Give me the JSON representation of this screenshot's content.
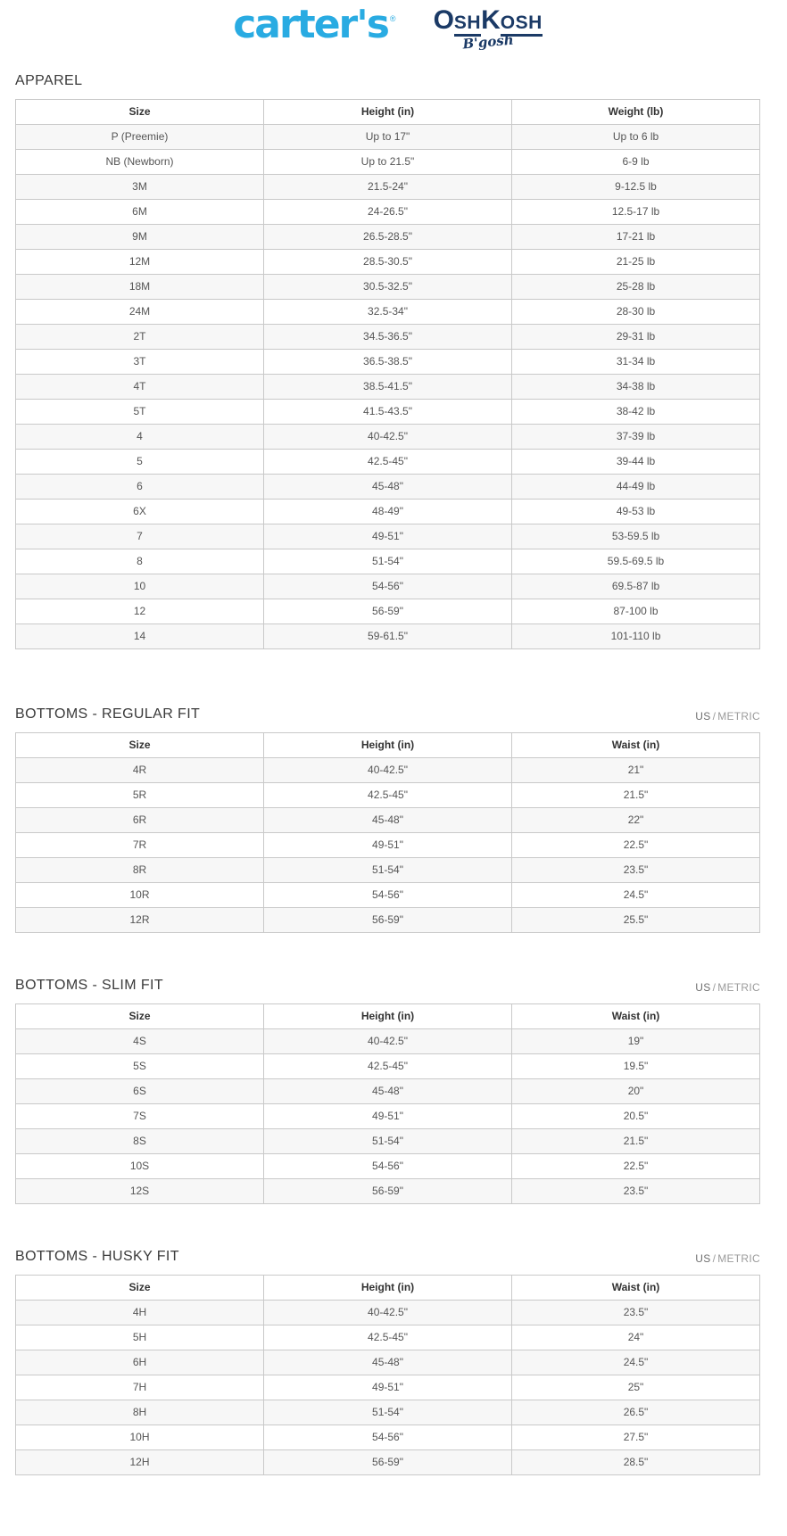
{
  "colors": {
    "carters_blue": "#29abe2",
    "oshkosh_navy": "#1b3a66",
    "stripe_gray": "#f7f7f7",
    "border_gray": "#c9c9c9"
  },
  "header": {
    "carters": {
      "text": "carter's",
      "reg": "®"
    },
    "oshkosh": {
      "o": "O",
      "sh": "SH",
      "k": "K",
      "osh": "OSH",
      "script": "B'gosh"
    }
  },
  "unit_toggle": {
    "us": "US",
    "sep": "/",
    "metric": "METRIC"
  },
  "sections": [
    {
      "title": "APPAREL",
      "columns": [
        "Size",
        "Height (in)",
        "Weight (lb)"
      ],
      "rows": [
        [
          "P (Preemie)",
          "Up to 17\"",
          "Up to 6 lb"
        ],
        [
          "NB (Newborn)",
          "Up to 21.5\"",
          "6-9 lb"
        ],
        [
          "3M",
          "21.5-24\"",
          "9-12.5 lb"
        ],
        [
          "6M",
          "24-26.5\"",
          "12.5-17 lb"
        ],
        [
          "9M",
          "26.5-28.5\"",
          "17-21 lb"
        ],
        [
          "12M",
          "28.5-30.5\"",
          "21-25 lb"
        ],
        [
          "18M",
          "30.5-32.5\"",
          "25-28 lb"
        ],
        [
          "24M",
          "32.5-34\"",
          "28-30 lb"
        ],
        [
          "2T",
          "34.5-36.5\"",
          "29-31 lb"
        ],
        [
          "3T",
          "36.5-38.5\"",
          "31-34 lb"
        ],
        [
          "4T",
          "38.5-41.5\"",
          "34-38 lb"
        ],
        [
          "5T",
          "41.5-43.5\"",
          "38-42 lb"
        ],
        [
          "4",
          "40-42.5\"",
          "37-39 lb"
        ],
        [
          "5",
          "42.5-45\"",
          "39-44 lb"
        ],
        [
          "6",
          "45-48\"",
          "44-49 lb"
        ],
        [
          "6X",
          "48-49\"",
          "49-53 lb"
        ],
        [
          "7",
          "49-51\"",
          "53-59.5 lb"
        ],
        [
          "8",
          "51-54\"",
          "59.5-69.5 lb"
        ],
        [
          "10",
          "54-56\"",
          "69.5-87 lb"
        ],
        [
          "12",
          "56-59\"",
          "87-100 lb"
        ],
        [
          "14",
          "59-61.5\"",
          "101-110 lb"
        ]
      ]
    },
    {
      "title": "BOTTOMS - REGULAR FIT",
      "columns": [
        "Size",
        "Height (in)",
        "Waist (in)"
      ],
      "rows": [
        [
          "4R",
          "40-42.5\"",
          "21\""
        ],
        [
          "5R",
          "42.5-45\"",
          "21.5\""
        ],
        [
          "6R",
          "45-48\"",
          "22\""
        ],
        [
          "7R",
          "49-51\"",
          "22.5\""
        ],
        [
          "8R",
          "51-54\"",
          "23.5\""
        ],
        [
          "10R",
          "54-56\"",
          "24.5\""
        ],
        [
          "12R",
          "56-59\"",
          "25.5\""
        ]
      ]
    },
    {
      "title": "BOTTOMS - SLIM FIT",
      "columns": [
        "Size",
        "Height (in)",
        "Waist (in)"
      ],
      "rows": [
        [
          "4S",
          "40-42.5\"",
          "19\""
        ],
        [
          "5S",
          "42.5-45\"",
          "19.5\""
        ],
        [
          "6S",
          "45-48\"",
          "20\""
        ],
        [
          "7S",
          "49-51\"",
          "20.5\""
        ],
        [
          "8S",
          "51-54\"",
          "21.5\""
        ],
        [
          "10S",
          "54-56\"",
          "22.5\""
        ],
        [
          "12S",
          "56-59\"",
          "23.5\""
        ]
      ]
    },
    {
      "title": "BOTTOMS - HUSKY FIT",
      "columns": [
        "Size",
        "Height (in)",
        "Waist (in)"
      ],
      "rows": [
        [
          "4H",
          "40-42.5\"",
          "23.5\""
        ],
        [
          "5H",
          "42.5-45\"",
          "24\""
        ],
        [
          "6H",
          "45-48\"",
          "24.5\""
        ],
        [
          "7H",
          "49-51\"",
          "25\""
        ],
        [
          "8H",
          "51-54\"",
          "26.5\""
        ],
        [
          "10H",
          "54-56\"",
          "27.5\""
        ],
        [
          "12H",
          "56-59\"",
          "28.5\""
        ]
      ]
    }
  ]
}
